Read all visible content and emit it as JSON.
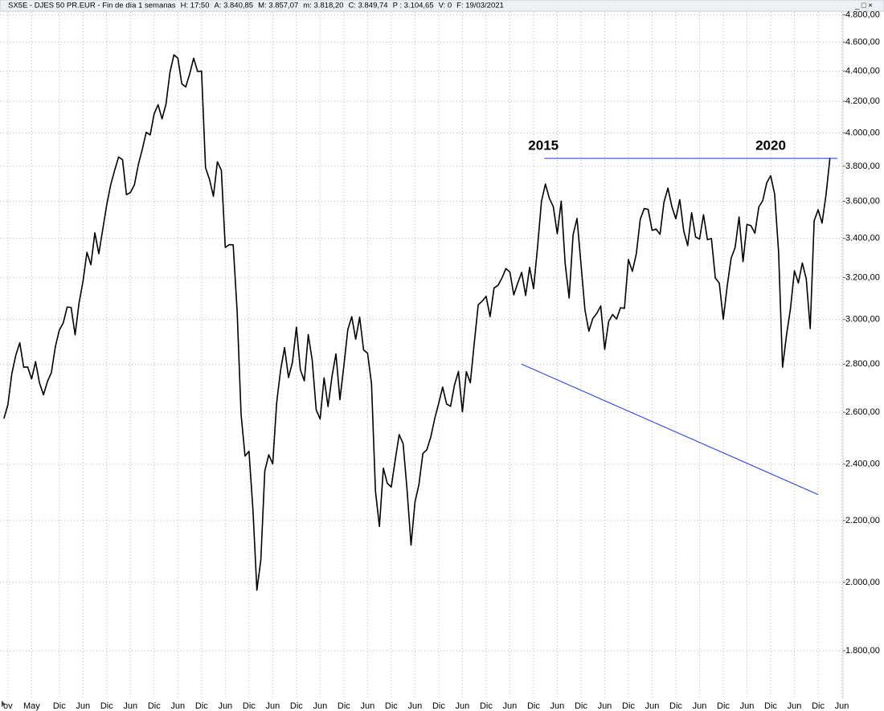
{
  "header": {
    "title": "SX5E - DJES 50 PR.EUR - Fin de día 1 semanas",
    "fields": [
      "H: 17:50",
      "A: 3.840,85",
      "M: 3.857,07",
      "m: 3.818,20",
      "C: 3.849,74"
    ],
    "highlight": "P : 3.104,65",
    "tail": [
      "V: 0",
      "F: 19/03/2021"
    ]
  },
  "chart_data": {
    "type": "line",
    "log_y": true,
    "grid": true,
    "color": "#000000",
    "x": [
      0,
      1,
      2,
      3,
      4,
      5,
      6,
      7,
      8,
      9,
      10,
      11,
      12,
      13,
      14,
      15,
      16,
      17,
      18,
      19,
      20,
      21,
      22,
      23,
      24,
      25,
      26,
      27,
      28,
      29,
      30,
      31,
      32,
      33,
      34,
      35,
      36,
      37,
      38,
      39,
      40,
      41,
      42,
      43,
      44,
      45,
      46,
      47,
      48,
      49,
      50,
      51,
      52,
      53,
      54,
      55,
      56,
      57,
      58,
      59,
      60,
      61,
      62,
      63,
      64,
      65,
      66,
      67,
      68,
      69,
      70,
      71,
      72,
      73,
      74,
      75,
      76,
      77,
      78,
      79,
      80,
      81,
      82,
      83,
      84,
      85,
      86,
      87,
      88,
      89,
      90,
      91,
      92,
      93,
      94,
      95,
      96,
      97,
      98,
      99,
      100,
      101,
      102,
      103,
      104,
      105,
      106,
      107,
      108,
      109,
      110,
      111,
      112,
      113,
      114,
      115,
      116,
      117,
      118,
      119,
      120,
      121,
      122,
      123,
      124,
      125,
      126,
      127,
      128,
      129,
      130,
      131,
      132,
      133,
      134,
      135,
      136,
      137,
      138,
      139,
      140,
      141,
      142,
      143,
      144,
      145,
      146,
      147,
      148,
      149,
      150,
      151,
      152,
      153,
      154,
      155,
      156,
      157,
      158,
      159,
      160,
      161,
      162,
      163,
      164,
      165,
      166,
      167,
      168,
      169,
      170,
      171,
      172,
      173,
      174,
      175,
      176,
      177,
      178,
      179,
      180,
      181,
      182,
      183,
      184,
      185,
      186,
      187,
      188,
      189,
      190,
      191,
      192,
      193,
      194,
      195,
      196,
      197,
      198,
      199,
      200,
      201,
      202,
      203,
      204,
      205,
      206,
      207,
      208,
      209
    ],
    "values": [
      2575,
      2631,
      2760,
      2839,
      2894,
      2787,
      2788,
      2737,
      2811,
      2720,
      2671,
      2726,
      2764,
      2876,
      2951,
      2984,
      3058,
      3056,
      2930,
      3077,
      3182,
      3327,
      3264,
      3429,
      3320,
      3448,
      3579,
      3692,
      3775,
      3854,
      3839,
      3637,
      3649,
      3692,
      3809,
      3900,
      4004,
      3988,
      4120,
      4178,
      4088,
      4182,
      4392,
      4512,
      4489,
      4315,
      4294,
      4382,
      4489,
      4398,
      4400,
      3792,
      3724,
      3628,
      3826,
      3777,
      3352,
      3367,
      3366,
      3038,
      2591,
      2430,
      2448,
      2237,
      1976,
      2071,
      2375,
      2435,
      2401,
      2638,
      2775,
      2873,
      2743,
      2809,
      2965,
      2776,
      2729,
      2931,
      2817,
      2610,
      2573,
      2742,
      2623,
      2748,
      2845,
      2651,
      2792,
      2953,
      3013,
      2910,
      3011,
      2862,
      2848,
      2718,
      2302,
      2180,
      2385,
      2330,
      2317,
      2416,
      2512,
      2477,
      2306,
      2118,
      2264,
      2326,
      2440,
      2454,
      2503,
      2575,
      2636,
      2703,
      2633,
      2624,
      2712,
      2769,
      2602,
      2768,
      2721,
      2893,
      3068,
      3086,
      3109,
      3013,
      3149,
      3162,
      3198,
      3245,
      3228,
      3116,
      3173,
      3226,
      3113,
      3251,
      3146,
      3351,
      3599,
      3697,
      3616,
      3570,
      3424,
      3601,
      3270,
      3101,
      3418,
      3506,
      3268,
      3045,
      2946,
      3005,
      3028,
      3063,
      2865,
      2991,
      3023,
      3002,
      3055,
      3052,
      3291,
      3231,
      3320,
      3501,
      3560,
      3555,
      3442,
      3449,
      3421,
      3595,
      3674,
      3570,
      3504,
      3609,
      3439,
      3362,
      3537,
      3407,
      3396,
      3526,
      3393,
      3399,
      3198,
      3173,
      3001,
      3159,
      3298,
      3352,
      3514,
      3280,
      3474,
      3467,
      3427,
      3569,
      3604,
      3704,
      3745,
      3640,
      3329,
      2787,
      2928,
      3050,
      3234,
      3174,
      3273,
      3194,
      2958,
      3493,
      3553,
      3481,
      3636,
      3850
    ],
    "xlim": [
      -1,
      212.3
    ],
    "xticks": [
      {
        "value": 1,
        "label": "ov"
      },
      {
        "value": 7,
        "label": "May"
      },
      {
        "value": 14,
        "label": "Dic"
      },
      {
        "value": 20,
        "label": "Jun"
      },
      {
        "value": 26,
        "label": "Dic"
      },
      {
        "value": 32,
        "label": "Jun"
      },
      {
        "value": 38,
        "label": "Dic"
      },
      {
        "value": 44,
        "label": "Jun"
      },
      {
        "value": 50,
        "label": "Dic"
      },
      {
        "value": 56,
        "label": "Jun"
      },
      {
        "value": 62,
        "label": "Dic"
      },
      {
        "value": 68,
        "label": "Jun"
      },
      {
        "value": 74,
        "label": "Dic"
      },
      {
        "value": 80,
        "label": "Jun"
      },
      {
        "value": 86,
        "label": "Dic"
      },
      {
        "value": 92,
        "label": "Jun"
      },
      {
        "value": 98,
        "label": "Dic"
      },
      {
        "value": 104,
        "label": "Jun"
      },
      {
        "value": 110,
        "label": "Dic"
      },
      {
        "value": 116,
        "label": "Jun"
      },
      {
        "value": 122,
        "label": "Dic"
      },
      {
        "value": 128,
        "label": "Jun"
      },
      {
        "value": 134,
        "label": "Dic"
      },
      {
        "value": 140,
        "label": "Jun"
      },
      {
        "value": 146,
        "label": "Dic"
      },
      {
        "value": 152,
        "label": "Jun"
      },
      {
        "value": 158,
        "label": "Dic"
      },
      {
        "value": 164,
        "label": "Jun"
      },
      {
        "value": 170,
        "label": "Dic"
      },
      {
        "value": 176,
        "label": "Jun"
      },
      {
        "value": 182,
        "label": "Dic"
      },
      {
        "value": 188,
        "label": "Jun"
      },
      {
        "value": 194,
        "label": "Dic"
      },
      {
        "value": 200,
        "label": "Jun"
      },
      {
        "value": 206,
        "label": "Dic"
      },
      {
        "value": 212,
        "label": "Jun"
      }
    ],
    "ylim": [
      1675,
      4820
    ],
    "yticks": [
      {
        "value": 1800,
        "label": "1.800,00"
      },
      {
        "value": 2000,
        "label": "2.000,00"
      },
      {
        "value": 2200,
        "label": "2.200,00"
      },
      {
        "value": 2400,
        "label": "2.400,00"
      },
      {
        "value": 2600,
        "label": "2.600,00"
      },
      {
        "value": 2800,
        "label": "2.800,00"
      },
      {
        "value": 3000,
        "label": "3.000,00"
      },
      {
        "value": 3200,
        "label": "3.200,00"
      },
      {
        "value": 3400,
        "label": "3.400,00"
      },
      {
        "value": 3600,
        "label": "3.600,00"
      },
      {
        "value": 3800,
        "label": "3.800,00"
      },
      {
        "value": 4000,
        "label": "4.000,00"
      },
      {
        "value": 4200,
        "label": "4.200,00"
      },
      {
        "value": 4400,
        "label": "4.400,00"
      },
      {
        "value": 4600,
        "label": "4.600,00"
      },
      {
        "value": 4800,
        "label": "4.800,00"
      }
    ],
    "annotations": [
      {
        "text": "2015",
        "x": 136.5,
        "y": 3920,
        "color": "#1a8a1a"
      },
      {
        "text": "2020",
        "x": 194,
        "y": 3920,
        "color": "#1a8a1a"
      }
    ],
    "lines": [
      {
        "x": [
          136.7,
          210.9
        ],
        "y": [
          3846,
          3846
        ],
        "color": "#2233ee"
      },
      {
        "x": [
          131,
          206
        ],
        "y": [
          2800,
          2290
        ],
        "color": "#2233ee"
      }
    ]
  }
}
